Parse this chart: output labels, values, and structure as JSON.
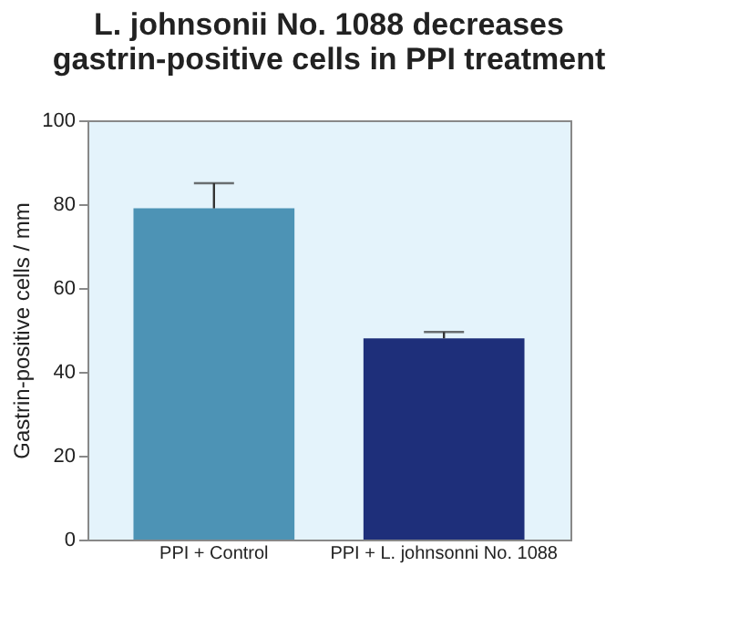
{
  "chart_data": {
    "type": "bar",
    "title": [
      "L. johnsonii No. 1088 decreases",
      "gastrin-positive cells in PPI treatment"
    ],
    "ylabel": "Gastrin-positive cells / mm",
    "categories": [
      "PPI + Control",
      "PPI + L. johnsonni No. 1088"
    ],
    "values": [
      79,
      48
    ],
    "colors": [
      "#4d93b5",
      "#1e2f7a"
    ],
    "errors": [
      [
        79,
        85
      ],
      [
        48,
        49.5
      ]
    ],
    "ylim": [
      0,
      100
    ],
    "yticks": [
      0,
      20,
      40,
      60,
      80,
      100
    ],
    "grid": false
  }
}
